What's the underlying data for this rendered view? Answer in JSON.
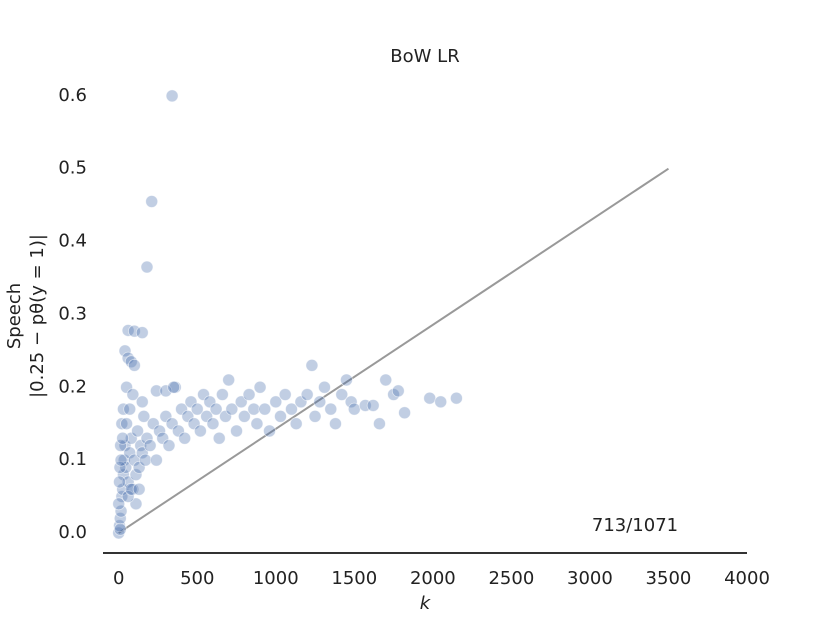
{
  "chart_data": {
    "type": "scatter",
    "title": "BoW LR",
    "x_label": "k",
    "y_label": [
      "Speech",
      "|0.25 − pθ(y = 1)|"
    ],
    "annotation": "713/1071",
    "color": "#4c72b0",
    "x": [
      340,
      210,
      180,
      60,
      100,
      150,
      40,
      60,
      80,
      100,
      0,
      5,
      10,
      15,
      20,
      25,
      10,
      30,
      35,
      40,
      20,
      30,
      50,
      45,
      60,
      70,
      80,
      90,
      100,
      110,
      120,
      130,
      140,
      150,
      160,
      170,
      180,
      200,
      220,
      240,
      260,
      280,
      300,
      320,
      340,
      360,
      380,
      400,
      420,
      440,
      460,
      480,
      500,
      520,
      540,
      560,
      580,
      600,
      620,
      640,
      660,
      680,
      700,
      720,
      750,
      780,
      800,
      830,
      860,
      880,
      900,
      930,
      960,
      1000,
      1030,
      1060,
      1100,
      1130,
      1160,
      1200,
      1230,
      1250,
      1280,
      1310,
      1350,
      1380,
      1420,
      1450,
      1480,
      1500,
      1570,
      1620,
      1660,
      1700,
      1750,
      1780,
      1820,
      1980,
      2050,
      2150,
      0,
      5,
      8,
      12,
      15,
      25,
      50,
      70,
      90,
      240,
      300,
      350,
      150,
      110,
      60,
      80,
      130
    ],
    "values": [
      0.6,
      0.455,
      0.365,
      0.278,
      0.277,
      0.275,
      0.25,
      0.24,
      0.235,
      0.23,
      0.0,
      0.01,
      0.02,
      0.03,
      0.05,
      0.06,
      0.005,
      0.08,
      0.1,
      0.12,
      0.15,
      0.17,
      0.2,
      0.09,
      0.07,
      0.11,
      0.13,
      0.06,
      0.1,
      0.08,
      0.14,
      0.09,
      0.12,
      0.11,
      0.16,
      0.1,
      0.13,
      0.12,
      0.15,
      0.1,
      0.14,
      0.13,
      0.16,
      0.12,
      0.15,
      0.2,
      0.14,
      0.17,
      0.13,
      0.16,
      0.18,
      0.15,
      0.17,
      0.14,
      0.19,
      0.16,
      0.18,
      0.15,
      0.17,
      0.13,
      0.19,
      0.16,
      0.21,
      0.17,
      0.14,
      0.18,
      0.16,
      0.19,
      0.17,
      0.15,
      0.2,
      0.17,
      0.14,
      0.18,
      0.16,
      0.19,
      0.17,
      0.15,
      0.18,
      0.19,
      0.23,
      0.16,
      0.18,
      0.2,
      0.17,
      0.15,
      0.19,
      0.21,
      0.18,
      0.17,
      0.175,
      0.175,
      0.15,
      0.21,
      0.19,
      0.195,
      0.165,
      0.185,
      0.18,
      0.185,
      0.04,
      0.07,
      0.09,
      0.12,
      0.1,
      0.13,
      0.15,
      0.17,
      0.19,
      0.195,
      0.195,
      0.2,
      0.18,
      0.04,
      0.05,
      0.06,
      0.06
    ],
    "reference_line": {
      "x": [
        0,
        3500
      ],
      "y": [
        0,
        0.5
      ],
      "color": "#999999"
    },
    "xlim": [
      -100,
      4000
    ],
    "ylim": [
      -0.0275,
      0.63
    ],
    "xticks": [
      0,
      500,
      1000,
      1500,
      2000,
      2500,
      3000,
      3500,
      4000
    ],
    "yticks": [
      {
        "value": 0,
        "label": "0.0"
      },
      0.1,
      0.2,
      0.3,
      0.4,
      0.5,
      0.6
    ],
    "grid": false
  }
}
